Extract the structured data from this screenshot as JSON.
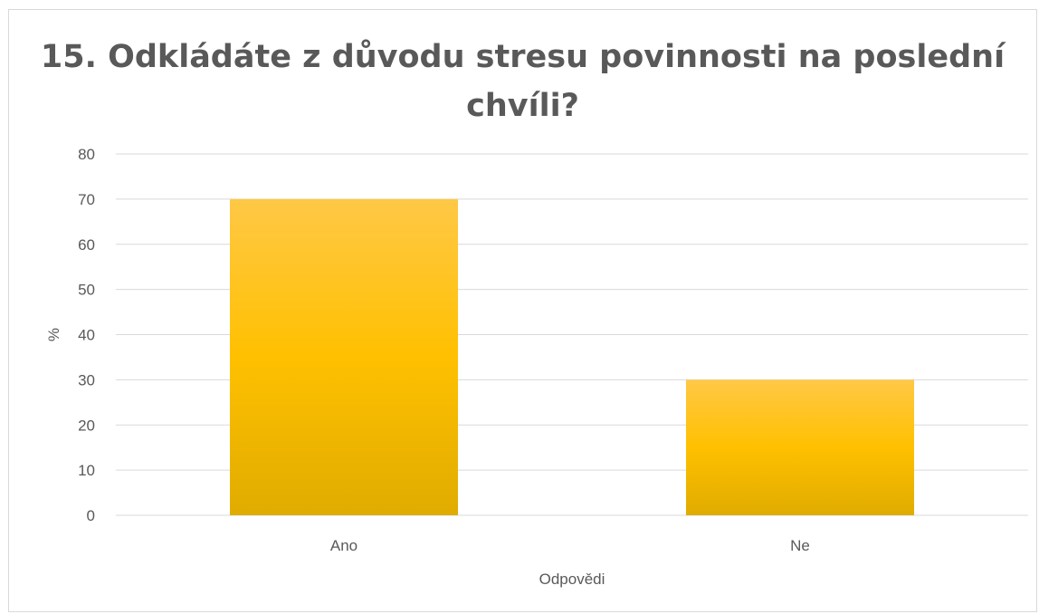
{
  "chart_data": {
    "type": "bar",
    "title": "15. Odkládáte z důvodu stresu povinnosti na poslední chvíli?",
    "categories": [
      "Ano",
      "Ne"
    ],
    "values": [
      70,
      30
    ],
    "xlabel": "Odpovědi",
    "ylabel": "%",
    "ylim": [
      0,
      80
    ],
    "yticks": [
      0,
      10,
      20,
      30,
      40,
      50,
      60,
      70,
      80
    ],
    "grid": true,
    "legend": "none",
    "colors": {
      "bar_top": "#ffc846",
      "bar_mid": "#ffc000",
      "bar_bottom": "#e0ac00",
      "grid": "#d9d9d9",
      "text": "#595959"
    }
  }
}
